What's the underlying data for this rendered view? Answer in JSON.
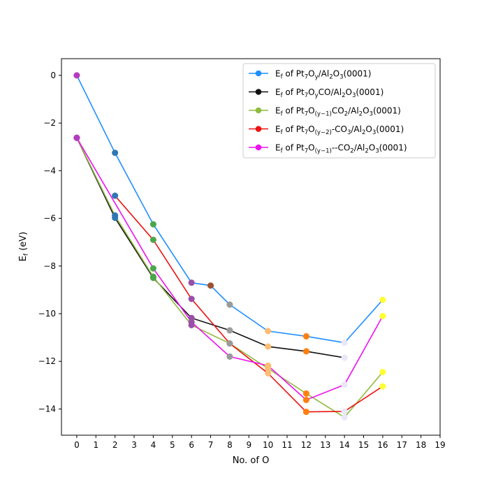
{
  "chart_data": {
    "type": "line",
    "xlabel": "No. of O",
    "ylabel": "E",
    "ylabel_sub": "f",
    "ylabel_unit": " (eV)",
    "xlim": [
      -0.8,
      19
    ],
    "ylim": [
      -15.1,
      0.7
    ],
    "xticks": [
      0,
      1,
      2,
      3,
      4,
      5,
      6,
      7,
      8,
      9,
      10,
      11,
      12,
      13,
      14,
      15,
      16,
      17,
      18,
      19
    ],
    "xtick_labels": [
      "0",
      "1",
      "2",
      "3",
      "4",
      "5",
      "6",
      "7",
      "8",
      "9",
      "10",
      "11",
      "12",
      "13",
      "14",
      "15",
      "16",
      "17",
      "18",
      "19"
    ],
    "yticks": [
      0,
      -2,
      -4,
      -6,
      -8,
      -10,
      -12,
      -14
    ],
    "ytick_labels": [
      "0",
      "−2",
      "−4",
      "−6",
      "−8",
      "−10",
      "−12",
      "−14"
    ],
    "grid": false,
    "legend_position": "top-right",
    "series": [
      {
        "legend": [
          [
            "E",
            "n"
          ],
          [
            "f",
            "sub"
          ],
          [
            " of Pt",
            "n"
          ],
          [
            "7",
            "sub"
          ],
          [
            "O",
            "n"
          ],
          [
            "y",
            "sub"
          ],
          [
            "/Al",
            "n"
          ],
          [
            "2",
            "sub"
          ],
          [
            "O",
            "n"
          ],
          [
            "3",
            "sub"
          ],
          [
            "(0001)",
            "n"
          ]
        ],
        "color": "#1f8fff",
        "x": [
          0,
          2,
          4,
          6,
          7,
          8,
          10,
          12,
          14,
          16
        ],
        "y": [
          0,
          -3.25,
          -6.25,
          -8.7,
          -8.82,
          -9.62,
          -10.73,
          -10.95,
          -11.22,
          -9.42
        ]
      },
      {
        "legend": [
          [
            "E",
            "n"
          ],
          [
            "f",
            "sub"
          ],
          [
            " of Pt",
            "n"
          ],
          [
            "7",
            "sub"
          ],
          [
            "O",
            "n"
          ],
          [
            "y",
            "sub"
          ],
          [
            "CO/Al",
            "n"
          ],
          [
            "2",
            "sub"
          ],
          [
            "O",
            "n"
          ],
          [
            "3",
            "sub"
          ],
          [
            "(0001)",
            "n"
          ]
        ],
        "color": "#111111",
        "x": [
          0,
          2,
          4,
          6,
          8,
          10,
          12,
          14
        ],
        "y": [
          -2.62,
          -5.98,
          -8.5,
          -10.18,
          -10.7,
          -11.38,
          -11.58,
          -11.85
        ]
      },
      {
        "legend": [
          [
            "E",
            "n"
          ],
          [
            "f",
            "sub"
          ],
          [
            " of Pt",
            "n"
          ],
          [
            "7",
            "sub"
          ],
          [
            "O",
            "n"
          ],
          [
            "(y−1)",
            "sub"
          ],
          [
            "CO",
            "n"
          ],
          [
            "2",
            "sub"
          ],
          [
            "/Al",
            "n"
          ],
          [
            "2",
            "sub"
          ],
          [
            "O",
            "n"
          ],
          [
            "3",
            "sub"
          ],
          [
            "(0001)",
            "n"
          ]
        ],
        "color": "#8fbc3f",
        "x": [
          0,
          2,
          4,
          6,
          8,
          10,
          12,
          14,
          16
        ],
        "y": [
          -2.62,
          -5.88,
          -8.45,
          -10.48,
          -11.25,
          -12.3,
          -13.35,
          -14.35,
          -12.45
        ]
      },
      {
        "legend": [
          [
            "E",
            "n"
          ],
          [
            "f",
            "sub"
          ],
          [
            " of Pt",
            "n"
          ],
          [
            "7",
            "sub"
          ],
          [
            "O",
            "n"
          ],
          [
            "(y−2)",
            "sub"
          ],
          [
            "-CO",
            "n"
          ],
          [
            "3",
            "sub"
          ],
          [
            "/Al",
            "n"
          ],
          [
            "2",
            "sub"
          ],
          [
            "O",
            "n"
          ],
          [
            "3",
            "sub"
          ],
          [
            "(0001)",
            "n"
          ]
        ],
        "color": "#ee1111",
        "x": [
          2,
          4,
          6,
          8,
          10,
          12,
          14,
          16
        ],
        "y": [
          -5.05,
          -6.9,
          -9.38,
          -11.25,
          -12.5,
          -14.12,
          -14.1,
          -13.05
        ]
      },
      {
        "legend": [
          [
            "E",
            "n"
          ],
          [
            "f",
            "sub"
          ],
          [
            " of Pt",
            "n"
          ],
          [
            "7",
            "sub"
          ],
          [
            "O",
            "n"
          ],
          [
            "(y−1)",
            "sub"
          ],
          [
            "--CO",
            "n"
          ],
          [
            "2",
            "sub"
          ],
          [
            "/Al",
            "n"
          ],
          [
            "2",
            "sub"
          ],
          [
            "O",
            "n"
          ],
          [
            "3",
            "sub"
          ],
          [
            "(0001)",
            "n"
          ]
        ],
        "color": "#ee11ee",
        "x": [
          0,
          4,
          6,
          8,
          10,
          12,
          14,
          16
        ],
        "y": [
          -2.62,
          -8.1,
          -10.35,
          -11.8,
          -12.18,
          -13.62,
          -12.98,
          -10.1
        ]
      }
    ],
    "point_colors": {
      "0": "#b23cbf",
      "2": "#2f78b4",
      "4": "#4ca64c",
      "6": "#9a4fa8",
      "7": "#a0522d",
      "8": "#9a9a9a",
      "10": "#ffbd72",
      "12": "#ff7f0e",
      "14": "#e8e8f8",
      "16": "#ffff33"
    }
  }
}
